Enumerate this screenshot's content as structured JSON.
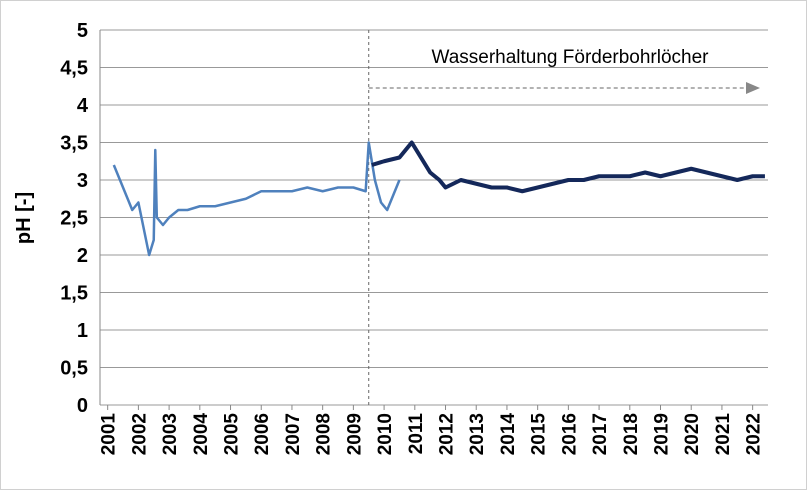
{
  "chart_data": {
    "type": "line",
    "ylabel": "pH [-]",
    "annotation": "Wasserhaltung Förderbohrlöcher",
    "annotation_x": 2009.5,
    "xlim": [
      2000.75,
      2022.5
    ],
    "xticks": [
      2001,
      2002,
      2003,
      2004,
      2005,
      2006,
      2007,
      2008,
      2009,
      2010,
      2011,
      2012,
      2013,
      2014,
      2015,
      2016,
      2017,
      2018,
      2019,
      2020,
      2021,
      2022
    ],
    "ylim": [
      0,
      5
    ],
    "yticks": [
      0,
      {
        "value": 0.5,
        "label": "0,5"
      },
      1,
      {
        "value": 1.5,
        "label": "1,5"
      },
      2,
      {
        "value": 2.5,
        "label": "2,5"
      },
      3,
      {
        "value": 3.5,
        "label": "3,5"
      },
      4,
      {
        "value": 4.5,
        "label": "4,5"
      },
      5
    ],
    "grid": true,
    "series": [
      {
        "color": "#4f81bd",
        "x": [
          2001.2,
          2001.4,
          2001.6,
          2001.8,
          2002.0,
          2002.2,
          2002.35,
          2002.5,
          2002.55,
          2002.6,
          2002.8,
          2003.0,
          2003.3,
          2003.6,
          2004.0,
          2004.5,
          2005.0,
          2005.5,
          2006.0,
          2006.5,
          2007.0,
          2007.5,
          2008.0,
          2008.5,
          2009.0,
          2009.4,
          2009.5,
          2009.7,
          2009.9,
          2010.1,
          2010.3,
          2010.5
        ],
        "values": [
          3.2,
          3.0,
          2.8,
          2.6,
          2.7,
          2.3,
          2.0,
          2.2,
          3.4,
          2.5,
          2.4,
          2.5,
          2.6,
          2.6,
          2.65,
          2.65,
          2.7,
          2.75,
          2.85,
          2.85,
          2.85,
          2.9,
          2.85,
          2.9,
          2.9,
          2.85,
          3.5,
          3.0,
          2.7,
          2.6,
          2.8,
          3.0
        ]
      },
      {
        "color": "#14285a",
        "x": [
          2009.6,
          2010.0,
          2010.5,
          2010.9,
          2011.2,
          2011.5,
          2011.8,
          2012.0,
          2012.5,
          2013.0,
          2013.5,
          2014.0,
          2014.5,
          2015.0,
          2015.5,
          2016.0,
          2016.5,
          2017.0,
          2017.5,
          2018.0,
          2018.5,
          2019.0,
          2019.5,
          2020.0,
          2020.5,
          2021.0,
          2021.5,
          2022.0,
          2022.4
        ],
        "values": [
          3.2,
          3.25,
          3.3,
          3.5,
          3.3,
          3.1,
          3.0,
          2.9,
          3.0,
          2.95,
          2.9,
          2.9,
          2.85,
          2.9,
          2.95,
          3.0,
          3.0,
          3.05,
          3.05,
          3.05,
          3.1,
          3.05,
          3.1,
          3.15,
          3.1,
          3.05,
          3.0,
          3.05,
          3.05
        ]
      }
    ]
  }
}
